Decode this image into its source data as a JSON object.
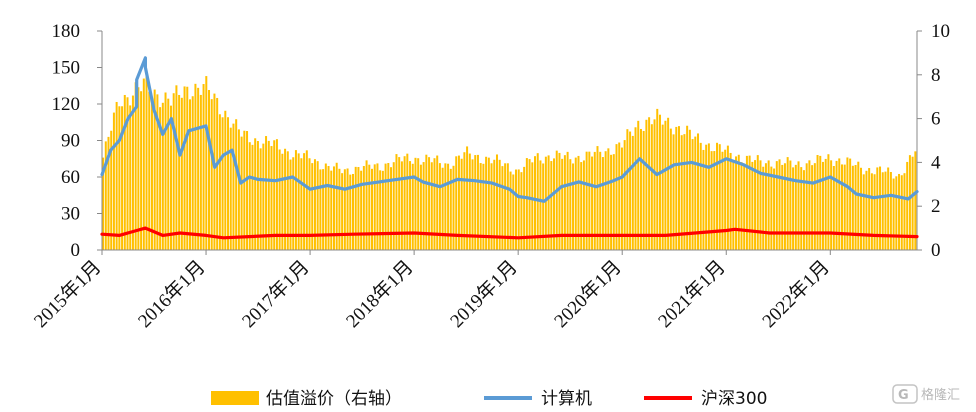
{
  "chart_data": {
    "type": "bar+line",
    "y_left": {
      "ylim": [
        0,
        180
      ],
      "ticks": [
        0,
        30,
        60,
        90,
        120,
        150,
        180
      ]
    },
    "y_right": {
      "ylim": [
        0,
        10
      ],
      "ticks": [
        0,
        2,
        4,
        6,
        8,
        10
      ]
    },
    "x_range": [
      "2015-01",
      "2022-11"
    ],
    "x_ticks": [
      "2015年1月",
      "2016年1月",
      "2017年1月",
      "2018年1月",
      "2019年1月",
      "2020年1月",
      "2021年1月",
      "2022年1月"
    ],
    "legend_position": "bottom",
    "series": [
      {
        "name": "估值溢价（右轴）",
        "type": "bar",
        "axis": "right",
        "color": "#FFC000",
        "x": [
          "2015-01",
          "2015-03",
          "2015-05",
          "2015-06",
          "2015-07",
          "2015-09",
          "2015-11",
          "2016-01",
          "2016-03",
          "2016-05",
          "2016-07",
          "2016-09",
          "2016-11",
          "2017-01",
          "2017-03",
          "2017-05",
          "2017-07",
          "2017-09",
          "2017-11",
          "2018-01",
          "2018-03",
          "2018-05",
          "2018-07",
          "2018-09",
          "2018-11",
          "2019-01",
          "2019-03",
          "2019-05",
          "2019-07",
          "2019-09",
          "2019-11",
          "2020-01",
          "2020-03",
          "2020-05",
          "2020-07",
          "2020-09",
          "2020-11",
          "2021-01",
          "2021-03",
          "2021-05",
          "2021-07",
          "2021-09",
          "2021-11",
          "2022-01",
          "2022-03",
          "2022-05",
          "2022-07",
          "2022-09",
          "2022-11"
        ],
        "values": [
          4.0,
          6.8,
          7.3,
          7.5,
          7.2,
          6.8,
          7.4,
          7.4,
          6.4,
          5.3,
          5.0,
          4.8,
          4.4,
          4.2,
          3.8,
          3.6,
          3.8,
          3.8,
          4.1,
          4.2,
          4.1,
          3.9,
          4.4,
          4.2,
          4.0,
          3.6,
          4.2,
          4.3,
          4.2,
          4.3,
          4.5,
          4.8,
          5.8,
          6.0,
          5.7,
          5.2,
          4.8,
          4.5,
          4.2,
          4.0,
          4.0,
          3.9,
          4.0,
          4.2,
          4.0,
          3.7,
          3.6,
          3.4,
          4.6
        ]
      },
      {
        "name": "计算机",
        "type": "line",
        "axis": "left",
        "color": "#5B9BD5",
        "x": [
          "2015-01",
          "2015-02",
          "2015-03",
          "2015-04",
          "2015-05",
          "2015-05",
          "2015-06",
          "2015-06",
          "2015-07",
          "2015-08",
          "2015-09",
          "2015-10",
          "2015-11",
          "2015-12",
          "2016-01",
          "2016-02",
          "2016-03",
          "2016-04",
          "2016-05",
          "2016-06",
          "2016-07",
          "2016-09",
          "2016-11",
          "2017-01",
          "2017-03",
          "2017-05",
          "2017-07",
          "2017-09",
          "2017-11",
          "2018-01",
          "2018-02",
          "2018-04",
          "2018-06",
          "2018-08",
          "2018-10",
          "2018-12",
          "2019-01",
          "2019-02",
          "2019-04",
          "2019-06",
          "2019-08",
          "2019-10",
          "2019-12",
          "2020-01",
          "2020-03",
          "2020-05",
          "2020-07",
          "2020-09",
          "2020-11",
          "2021-01",
          "2021-03",
          "2021-05",
          "2021-07",
          "2021-09",
          "2021-11",
          "2022-01",
          "2022-03",
          "2022-04",
          "2022-06",
          "2022-08",
          "2022-10",
          "2022-11"
        ],
        "values": [
          62,
          82,
          90,
          108,
          118,
          140,
          158,
          150,
          115,
          95,
          108,
          78,
          98,
          100,
          102,
          68,
          78,
          82,
          55,
          60,
          58,
          57,
          60,
          50,
          53,
          50,
          54,
          56,
          58,
          60,
          56,
          52,
          58,
          57,
          55,
          50,
          44,
          43,
          40,
          52,
          56,
          52,
          57,
          60,
          75,
          62,
          70,
          72,
          68,
          75,
          70,
          63,
          60,
          57,
          55,
          60,
          52,
          46,
          43,
          45,
          42,
          48
        ]
      },
      {
        "name": "沪深300",
        "type": "line",
        "axis": "left",
        "color": "#FF0000",
        "x": [
          "2015-01",
          "2015-03",
          "2015-05",
          "2015-06",
          "2015-08",
          "2015-10",
          "2016-01",
          "2016-03",
          "2016-06",
          "2016-09",
          "2017-01",
          "2017-06",
          "2018-01",
          "2018-06",
          "2019-01",
          "2019-06",
          "2020-01",
          "2020-06",
          "2021-01",
          "2021-02",
          "2021-06",
          "2022-01",
          "2022-06",
          "2022-11"
        ],
        "values": [
          13,
          12,
          16,
          18,
          12,
          14,
          12,
          10,
          11,
          12,
          12,
          13,
          14,
          12,
          10,
          12,
          12,
          12,
          16,
          17,
          14,
          14,
          12,
          11
        ]
      }
    ]
  },
  "legend": [
    {
      "label": "估值溢价（右轴）",
      "color": "#FFC000",
      "kind": "box"
    },
    {
      "label": "计算机",
      "color": "#5B9BD5",
      "kind": "line"
    },
    {
      "label": "沪深300",
      "color": "#FF0000",
      "kind": "line"
    }
  ],
  "watermark": {
    "text": "格隆汇"
  }
}
